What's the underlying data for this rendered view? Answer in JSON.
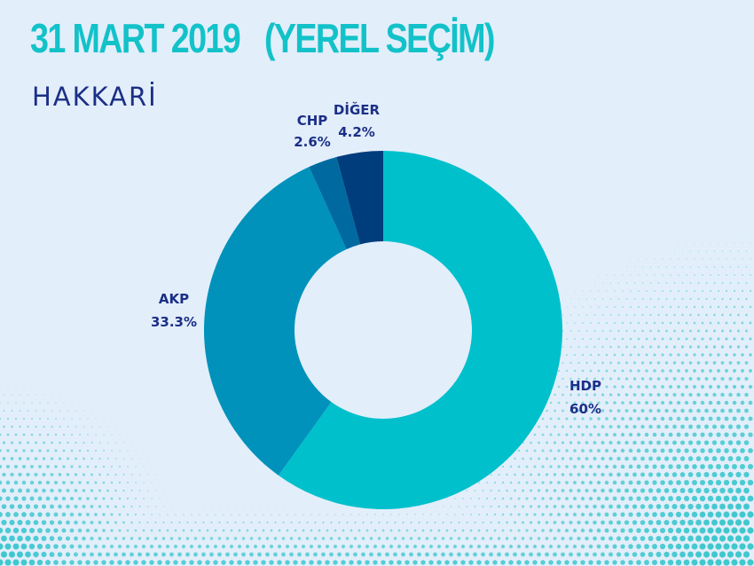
{
  "header": {
    "title_date": "31 MART 2019",
    "title_type": "(YEREL SEÇİM)",
    "subtitle": "HAKKARİ"
  },
  "colors": {
    "background": "#e3eefb",
    "title": "#13c2c9",
    "text": "#1b2f86",
    "dots": "#2cc3c8"
  },
  "chart_data": {
    "type": "donut",
    "title": "31 MART 2019 (YEREL SEÇİM)",
    "subtitle": "HAKKARİ",
    "slices": [
      {
        "name": "HDP",
        "value": 60,
        "label": "60%",
        "color": "#00c0cc"
      },
      {
        "name": "AKP",
        "value": 33.3,
        "label": "33.3%",
        "color": "#0092bb"
      },
      {
        "name": "CHP",
        "value": 2.6,
        "label": "2.6%",
        "color": "#006aa0"
      },
      {
        "name": "DİĞER",
        "value": 4.2,
        "label": "4.2%",
        "color": "#003d7c"
      }
    ]
  }
}
